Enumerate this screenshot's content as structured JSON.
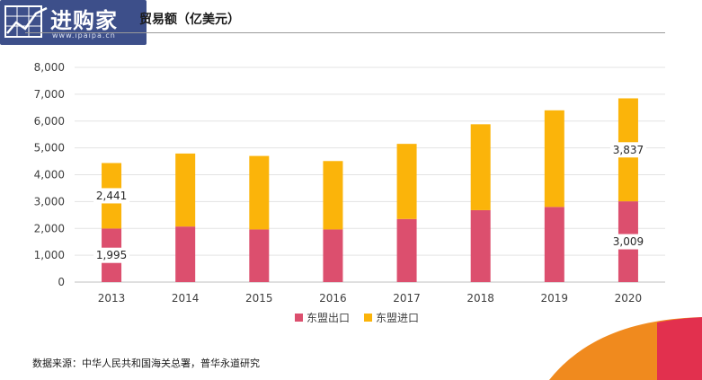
{
  "title": "贸易额（亿美元）",
  "logo": {
    "text": "进购家",
    "url": "www.ipaipa.cn"
  },
  "source": "数据来源：中华人民共和国海关总署，普华永道研究",
  "colors": {
    "export": "#dc4f6e",
    "import": "#fbb40a"
  },
  "chart_data": {
    "type": "bar",
    "stacked": true,
    "categories": [
      "2013",
      "2014",
      "2015",
      "2016",
      "2017",
      "2018",
      "2019",
      "2020"
    ],
    "series": [
      {
        "name": "东盟出口",
        "values": [
          1995,
          2070,
          1960,
          1960,
          2350,
          2680,
          2800,
          3009
        ]
      },
      {
        "name": "东盟进口",
        "values": [
          2441,
          2720,
          2740,
          2550,
          2800,
          3200,
          3600,
          3837
        ]
      }
    ],
    "ylim": [
      0,
      8000
    ],
    "yticks": [
      "0",
      "1,000",
      "2,000",
      "3,000",
      "4,000",
      "5,000",
      "6,000",
      "7,000",
      "8,000"
    ],
    "data_labels": [
      {
        "category": "2013",
        "series": "东盟出口",
        "text": "1,995"
      },
      {
        "category": "2013",
        "series": "东盟进口",
        "text": "2,441"
      },
      {
        "category": "2020",
        "series": "东盟出口",
        "text": "3,009"
      },
      {
        "category": "2020",
        "series": "东盟进口",
        "text": "3,837"
      }
    ],
    "grid": true,
    "legend_position": "bottom"
  }
}
